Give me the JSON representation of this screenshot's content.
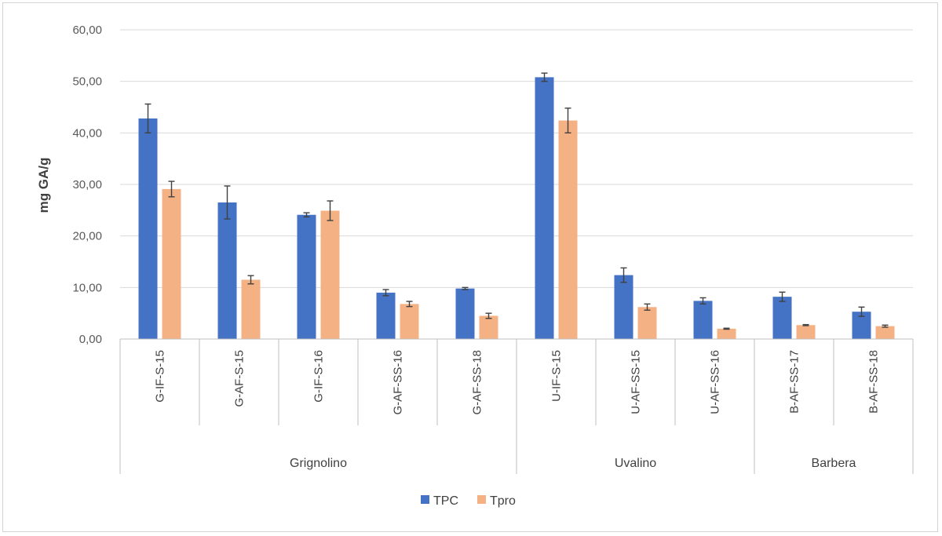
{
  "chart_data": {
    "type": "bar",
    "title": "",
    "xlabel": "",
    "ylabel": "mg GA/g",
    "ylim": [
      0,
      60
    ],
    "yticks": [
      "0,00",
      "10,00",
      "20,00",
      "30,00",
      "40,00",
      "50,00",
      "60,00"
    ],
    "grid": true,
    "legend_position": "bottom",
    "categories": [
      "G-IF-S-15",
      "G-AF-S-15",
      "G-IF-S-16",
      "G-AF-SS-16",
      "G-AF-SS-18",
      "U-IF-S-15",
      "U-AF-SS-15",
      "U-AF-SS-16",
      "B-AF-SS-17",
      "B-AF-SS-18"
    ],
    "groups": [
      {
        "name": "Grignolino",
        "count": 5
      },
      {
        "name": "Uvalino",
        "count": 3
      },
      {
        "name": "Barbera",
        "count": 2
      }
    ],
    "series": [
      {
        "name": "TPC",
        "color": "#4472C4",
        "values": [
          42.8,
          26.5,
          24.1,
          9.0,
          9.8,
          50.8,
          12.4,
          7.4,
          8.2,
          5.3
        ],
        "errors": [
          2.8,
          3.2,
          0.4,
          0.6,
          0.2,
          0.8,
          1.4,
          0.6,
          0.9,
          0.9
        ]
      },
      {
        "name": "Tpro",
        "color": "#F4B183",
        "values": [
          29.1,
          11.5,
          24.9,
          6.8,
          4.5,
          42.4,
          6.2,
          2.0,
          2.7,
          2.5
        ],
        "errors": [
          1.5,
          0.8,
          1.9,
          0.5,
          0.5,
          2.4,
          0.6,
          0.1,
          0.1,
          0.2
        ]
      }
    ]
  }
}
